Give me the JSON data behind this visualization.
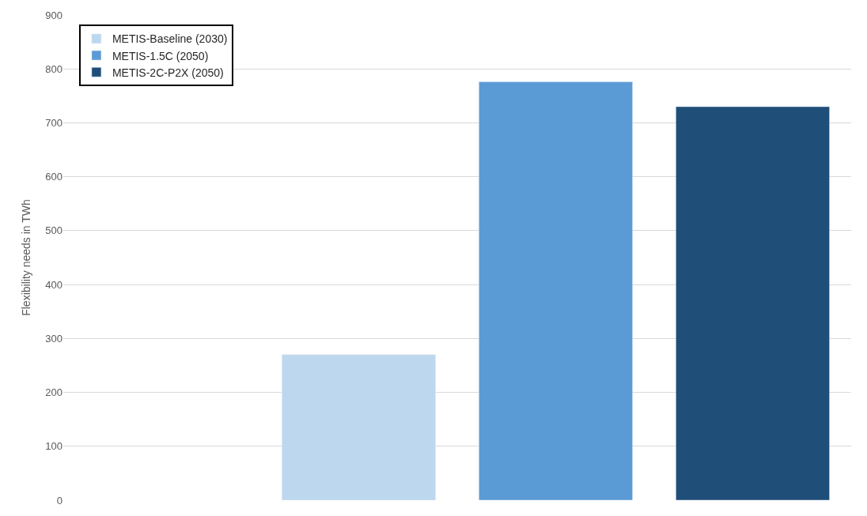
{
  "chart_data": {
    "type": "bar",
    "ylabel": "Flexibility needs in TWh",
    "categories": [
      null,
      null,
      null,
      null
    ],
    "series": [
      {
        "name": "METIS-Baseline (2030)",
        "color": "#bdd7ee",
        "values": [
          null,
          270,
          null,
          null
        ]
      },
      {
        "name": "METIS-1.5C (2050)",
        "color": "#5b9bd5",
        "values": [
          null,
          null,
          776,
          null
        ]
      },
      {
        "name": "METIS-2C-P2X (2050)",
        "color": "#1f4e79",
        "values": [
          null,
          null,
          null,
          730
        ]
      }
    ],
    "ylim": [
      0,
      900
    ],
    "yticks": [
      0,
      100,
      200,
      300,
      400,
      500,
      600,
      700,
      800,
      900
    ],
    "grid": "y",
    "legend": "top left"
  }
}
